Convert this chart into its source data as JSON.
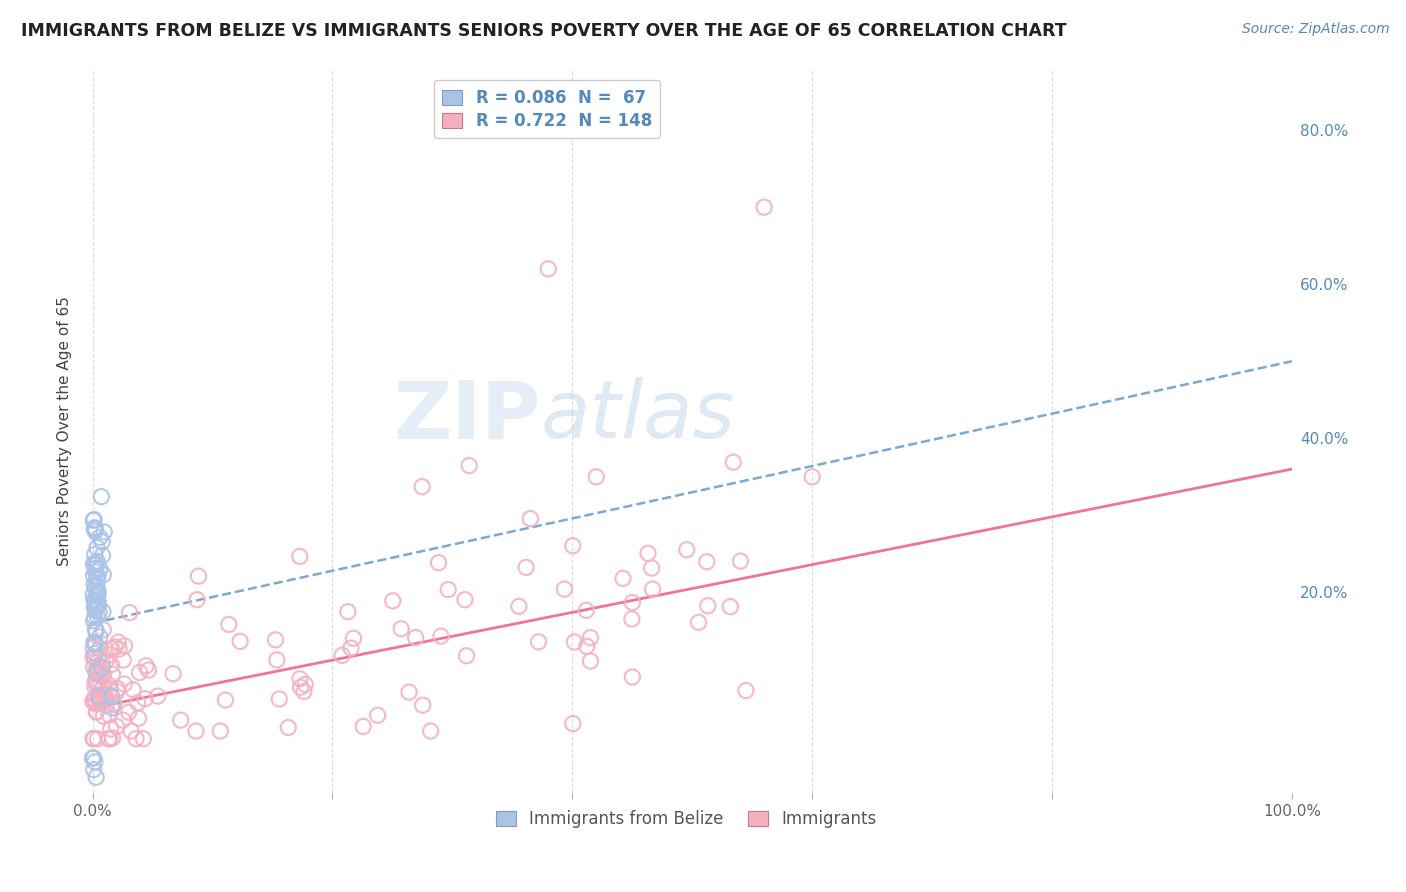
{
  "title": "IMMIGRANTS FROM BELIZE VS IMMIGRANTS SENIORS POVERTY OVER THE AGE OF 65 CORRELATION CHART",
  "source_text": "Source: ZipAtlas.com",
  "ylabel": "Seniors Poverty Over the Age of 65",
  "xlabel": "",
  "xlim": [
    -0.01,
    1.0
  ],
  "ylim": [
    -0.06,
    0.88
  ],
  "xtick_positions": [
    0.0,
    0.2,
    0.4,
    0.6,
    0.8,
    1.0
  ],
  "xticklabels": [
    "0.0%",
    "",
    "",
    "",
    "",
    "100.0%"
  ],
  "ytick_positions": [
    0.0,
    0.2,
    0.4,
    0.6,
    0.8
  ],
  "yticklabels_right": [
    "",
    "20.0%",
    "40.0%",
    "60.0%",
    "80.0%"
  ],
  "legend_label_1": "R = 0.086  N =  67",
  "legend_label_2": "R = 0.722  N = 148",
  "legend_label_3": "Immigrants from Belize",
  "legend_label_4": "Immigrants",
  "watermark_zip": "ZIP",
  "watermark_atlas": "atlas",
  "background_color": "#ffffff",
  "plot_bg_color": "#ffffff",
  "grid_color": "#cccccc",
  "blue_scatter_color": "#aac4e8",
  "pink_scatter_color": "#f5b0c0",
  "blue_line_color": "#6699cc",
  "pink_line_color": "#ee6688",
  "blue_r": 0.086,
  "pink_r": 0.722,
  "blue_N": 67,
  "pink_N": 148,
  "blue_line_x0": 0.0,
  "blue_line_y0": 0.16,
  "blue_line_x1": 1.0,
  "blue_line_y1": 0.5,
  "pink_line_x0": 0.0,
  "pink_line_y0": 0.05,
  "pink_line_x1": 1.0,
  "pink_line_y1": 0.36,
  "title_color": "#222222",
  "title_fontsize": 12.5,
  "source_color": "#5588bb",
  "right_tick_color": "#5588bb",
  "ylabel_color": "#444444",
  "legend_text_color": "#5588bb"
}
